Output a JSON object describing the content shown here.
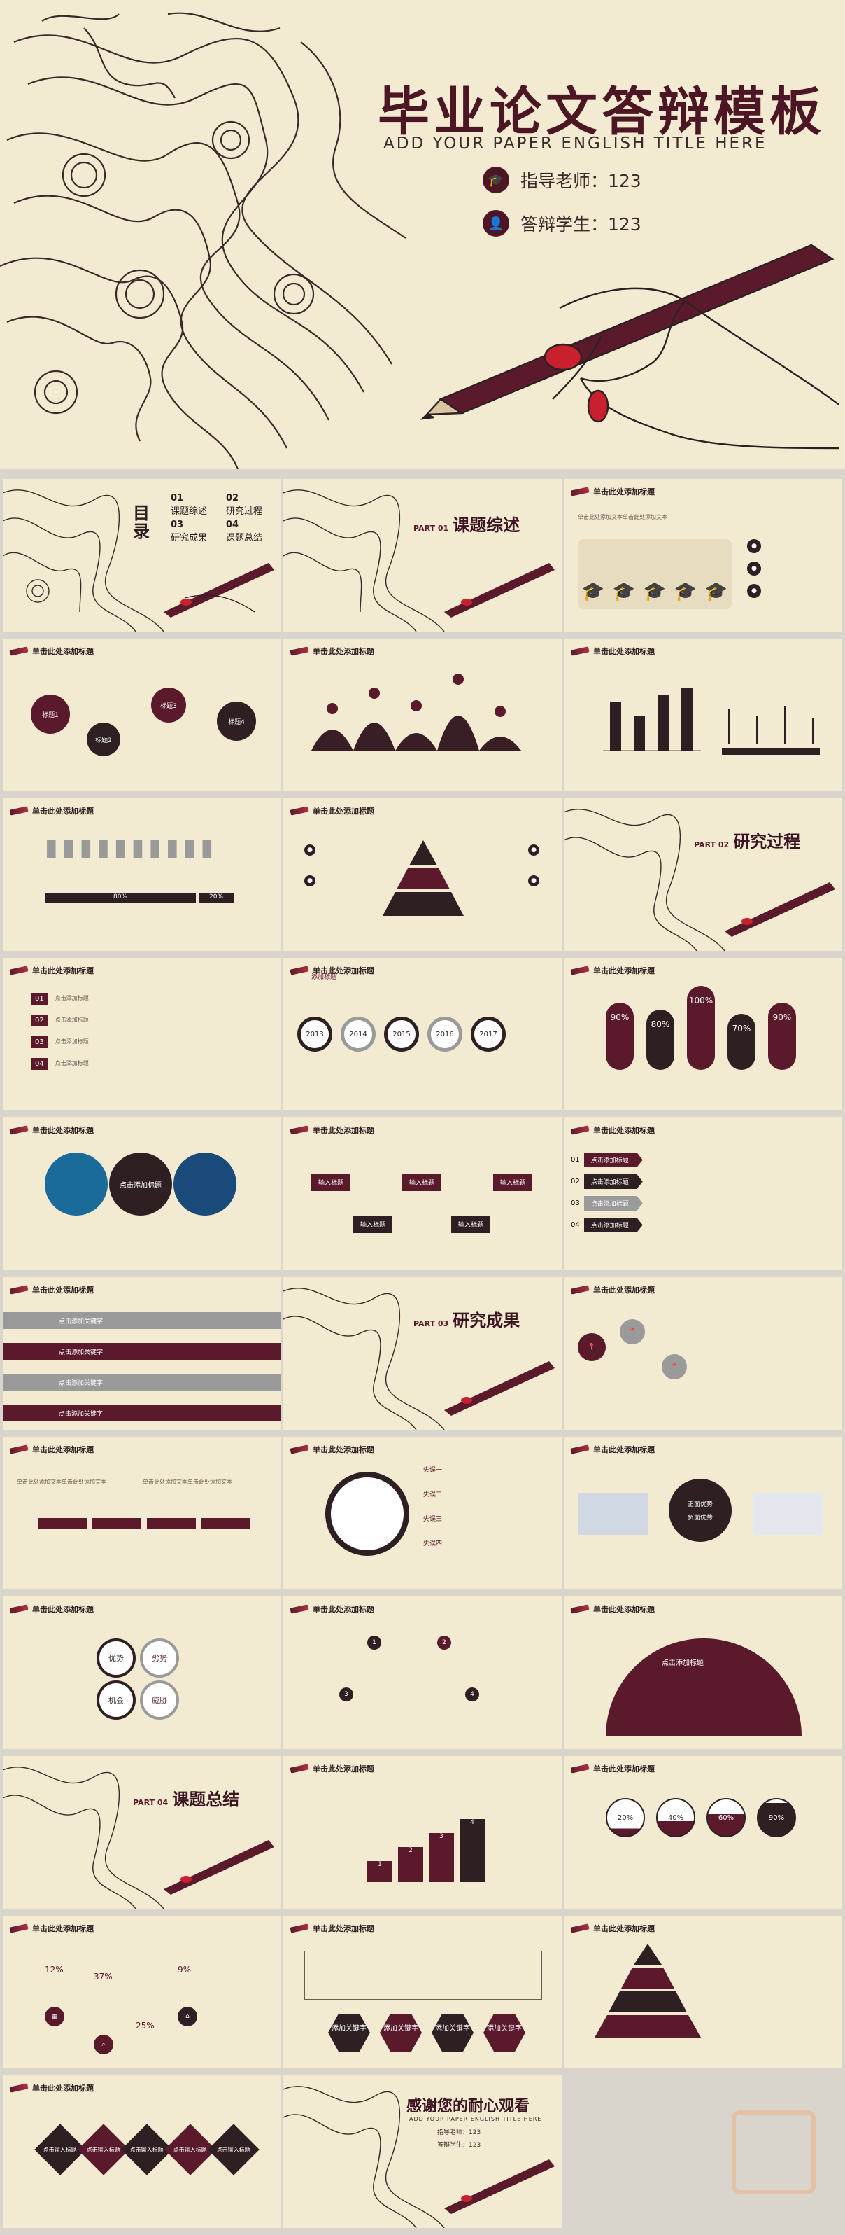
{
  "hero": {
    "title": "毕业论文答辩模板",
    "subtitle": "ADD YOUR PAPER ENGLISH TITLE HERE",
    "advisor": "指导老师：123",
    "student": "答辩学生：123"
  },
  "common": {
    "slide_header": "单击此处添加标题",
    "body_text": "单击此处添加文本单击此处添加文本"
  },
  "toc": {
    "title_a": "目",
    "title_b": "录",
    "items": [
      {
        "num": "01",
        "label": "课题综述"
      },
      {
        "num": "02",
        "label": "研究过程"
      },
      {
        "num": "03",
        "label": "研究成果"
      },
      {
        "num": "04",
        "label": "课题总结"
      }
    ]
  },
  "parts": [
    {
      "num": "PART 01",
      "title": "课题综述"
    },
    {
      "num": "PART 02",
      "title": "研究过程"
    },
    {
      "num": "PART 03",
      "title": "研究成果"
    },
    {
      "num": "PART 04",
      "title": "课题总结"
    }
  ],
  "slides": {
    "bubbles": [
      "标题1",
      "标题2",
      "标题3",
      "标题4"
    ],
    "people_progress": [
      "80%",
      "20%"
    ],
    "timeline_years": [
      "2013",
      "2014",
      "2015",
      "2016",
      "2017"
    ],
    "timeline_label": "添加标题",
    "capsule_percents": [
      "90%",
      "80%",
      "100%",
      "70%",
      "90%"
    ],
    "circle_click": "点击添加标题",
    "input_title": "输入标题",
    "nums4": [
      "01",
      "02",
      "03",
      "04"
    ],
    "keyword": "点击添加关键字",
    "gear_text": [
      "正面优势",
      "负面优势"
    ],
    "swot": [
      "优势",
      "劣势",
      "机会",
      "威胁"
    ],
    "steps": [
      "失误一",
      "失误二",
      "失误三",
      "失误四"
    ],
    "bars_numbers": [
      "1",
      "2",
      "3",
      "4"
    ],
    "water_percents": [
      "20%",
      "40%",
      "60%",
      "90%"
    ],
    "stats": [
      "12%",
      "37%",
      "9%",
      "25%"
    ],
    "hex_labels": [
      "添加关键字",
      "添加关键字",
      "添加关键字",
      "添加关键字"
    ],
    "pyramid_label": "输入标题",
    "diamond_label": "点击输入标题",
    "enter_title": "添加标题"
  },
  "ending": {
    "title": "感谢您的耐心观看",
    "subtitle": "ADD YOUR PAPER ENGLISH TITLE HERE",
    "advisor": "指导老师：123",
    "student": "答辩学生：123"
  },
  "colors": {
    "background": "#f3ead2",
    "maroon": "#5a1a2c",
    "dark": "#2e2022"
  }
}
